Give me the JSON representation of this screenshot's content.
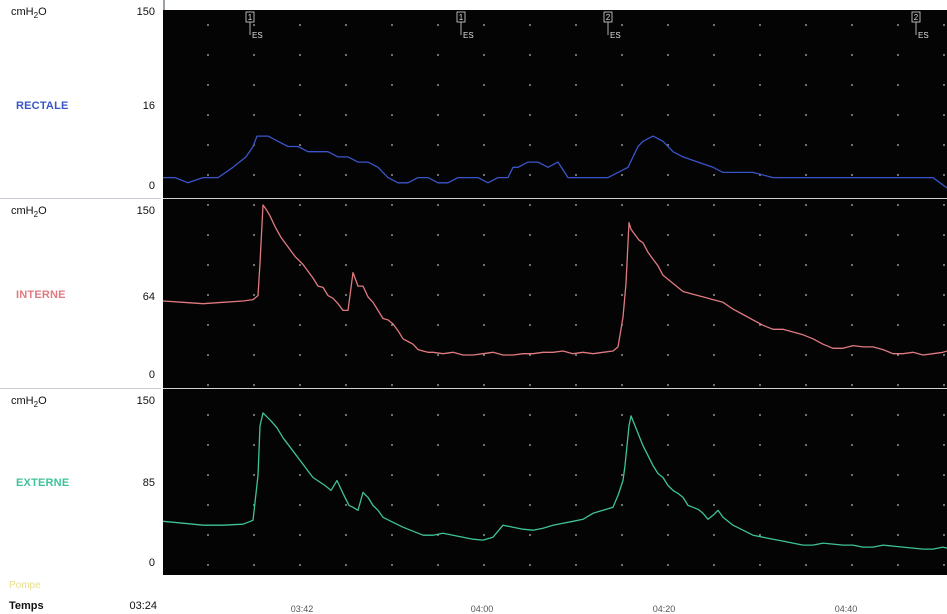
{
  "chart_data": [
    {
      "type": "line",
      "channel": "RECTALE",
      "unit": "cmH2O",
      "scale_max": "150",
      "scale_mid": "16",
      "scale_min": "0",
      "ylim": [
        0,
        32
      ],
      "color": "#3a55c8",
      "series": [
        {
          "name": "RECTALE",
          "x": [
            0,
            12,
            25,
            40,
            55,
            70,
            83,
            90,
            94,
            98,
            105,
            115,
            125,
            135,
            145,
            155,
            165,
            175,
            185,
            195,
            205,
            215,
            225,
            235,
            245,
            255,
            265,
            275,
            285,
            295,
            305,
            315,
            325,
            335,
            345,
            350,
            355,
            365,
            375,
            385,
            395,
            405,
            415,
            425,
            435,
            445,
            455,
            465,
            470,
            475,
            480,
            490,
            500,
            510,
            520,
            535,
            550,
            560,
            570,
            590,
            610,
            630,
            650,
            670,
            690,
            710,
            725,
            740,
            750,
            760,
            770,
            777,
            784
          ],
          "y": [
            2,
            2,
            1,
            2,
            2,
            4,
            6,
            8,
            10,
            10,
            10,
            9,
            8,
            8,
            7,
            7,
            7,
            6,
            6,
            5,
            5,
            4,
            2,
            1,
            1,
            2,
            2,
            1,
            1,
            2,
            2,
            2,
            1,
            2,
            2,
            4,
            4,
            5,
            5,
            4,
            5,
            2,
            2,
            2,
            2,
            2,
            3,
            4,
            6,
            8,
            9,
            10,
            9,
            7,
            6,
            5,
            4,
            3,
            3,
            3,
            2,
            2,
            2,
            2,
            2,
            2,
            2,
            2,
            2,
            2,
            2,
            1,
            0
          ]
        }
      ]
    },
    {
      "type": "line",
      "channel": "INTERNE",
      "unit": "cmH2O",
      "scale_max": "150",
      "scale_mid": "64",
      "scale_min": "0",
      "ylim": [
        0,
        128
      ],
      "color": "#e07a80",
      "series": [
        {
          "name": "INTERNE",
          "x": [
            0,
            20,
            40,
            60,
            80,
            90,
            95,
            97,
            100,
            103,
            107,
            112,
            118,
            125,
            132,
            140,
            146,
            150,
            155,
            160,
            165,
            170,
            175,
            180,
            185,
            190,
            195,
            200,
            205,
            210,
            215,
            220,
            225,
            230,
            235,
            240,
            245,
            250,
            255,
            260,
            265,
            270,
            280,
            290,
            300,
            310,
            320,
            330,
            340,
            350,
            360,
            370,
            380,
            390,
            400,
            410,
            420,
            430,
            440,
            450,
            455,
            460,
            463,
            466,
            468,
            472,
            476,
            480,
            485,
            490,
            495,
            500,
            510,
            520,
            530,
            540,
            550,
            560,
            570,
            580,
            590,
            600,
            610,
            620,
            630,
            640,
            650,
            660,
            670,
            680,
            690,
            700,
            710,
            720,
            730,
            740,
            750,
            760,
            770,
            780,
            784
          ],
          "y": [
            57,
            56,
            55,
            56,
            57,
            58,
            61,
            85,
            128,
            125,
            120,
            112,
            104,
            97,
            90,
            84,
            78,
            74,
            68,
            67,
            61,
            59,
            55,
            50,
            50,
            78,
            68,
            68,
            60,
            56,
            50,
            44,
            43,
            40,
            35,
            29,
            27,
            25,
            21,
            20,
            19,
            19,
            18,
            19,
            17,
            17,
            18,
            19,
            17,
            17,
            18,
            18,
            19,
            19,
            20,
            18,
            19,
            18,
            19,
            20,
            23,
            45,
            70,
            115,
            110,
            106,
            102,
            100,
            93,
            88,
            83,
            76,
            70,
            64,
            62,
            60,
            58,
            56,
            51,
            47,
            43,
            39,
            36,
            36,
            34,
            32,
            29,
            25,
            22,
            22,
            24,
            23,
            23,
            21,
            18,
            18,
            19,
            17,
            18,
            19,
            20
          ]
        }
      ]
    },
    {
      "type": "line",
      "channel": "EXTERNE",
      "unit": "cmH2O",
      "scale_max": "150",
      "scale_mid": "85",
      "scale_min": "0",
      "ylim": [
        0,
        170
      ],
      "color": "#3fc29a",
      "series": [
        {
          "name": "EXTERNE",
          "x": [
            0,
            20,
            40,
            60,
            80,
            90,
            95,
            97,
            100,
            103,
            108,
            114,
            120,
            126,
            132,
            138,
            144,
            150,
            156,
            162,
            168,
            174,
            180,
            186,
            190,
            195,
            200,
            205,
            210,
            215,
            220,
            230,
            240,
            250,
            260,
            270,
            280,
            290,
            300,
            310,
            320,
            330,
            340,
            350,
            360,
            370,
            380,
            390,
            400,
            410,
            420,
            430,
            440,
            450,
            455,
            460,
            462,
            464,
            466,
            468,
            472,
            476,
            480,
            485,
            490,
            495,
            500,
            505,
            510,
            515,
            520,
            525,
            530,
            535,
            540,
            545,
            550,
            555,
            560,
            565,
            570,
            580,
            590,
            600,
            610,
            620,
            630,
            640,
            650,
            660,
            670,
            680,
            690,
            700,
            710,
            720,
            730,
            740,
            750,
            760,
            770,
            780,
            784
          ],
          "y": [
            44,
            42,
            40,
            40,
            41,
            45,
            90,
            140,
            153,
            150,
            145,
            138,
            128,
            120,
            112,
            104,
            96,
            88,
            84,
            80,
            75,
            85,
            72,
            60,
            58,
            55,
            73,
            68,
            60,
            55,
            48,
            43,
            38,
            34,
            30,
            30,
            32,
            30,
            28,
            26,
            25,
            28,
            40,
            38,
            36,
            35,
            37,
            40,
            42,
            44,
            46,
            52,
            55,
            58,
            70,
            85,
            100,
            120,
            140,
            150,
            140,
            130,
            120,
            110,
            100,
            92,
            88,
            80,
            75,
            72,
            68,
            60,
            58,
            56,
            52,
            46,
            50,
            55,
            48,
            44,
            40,
            35,
            30,
            28,
            26,
            24,
            22,
            20,
            20,
            22,
            21,
            20,
            20,
            18,
            18,
            20,
            19,
            18,
            17,
            16,
            16,
            18,
            17
          ]
        }
      ]
    }
  ],
  "markers": [
    {
      "num": "1",
      "tag": "ES"
    },
    {
      "num": "1",
      "tag": "ES"
    },
    {
      "num": "2",
      "tag": "ES"
    },
    {
      "num": "2",
      "tag": "ES"
    }
  ],
  "footer": {
    "pompe_label": "Pompe",
    "time_label": "Temps",
    "time_start": "03:24",
    "time_ticks": [
      "03:42",
      "04:00",
      "04:20",
      "04:40"
    ]
  },
  "colors": {
    "background": "#040404",
    "grid_dot": "#bdbdbd",
    "separator": "#cfcfcf"
  }
}
